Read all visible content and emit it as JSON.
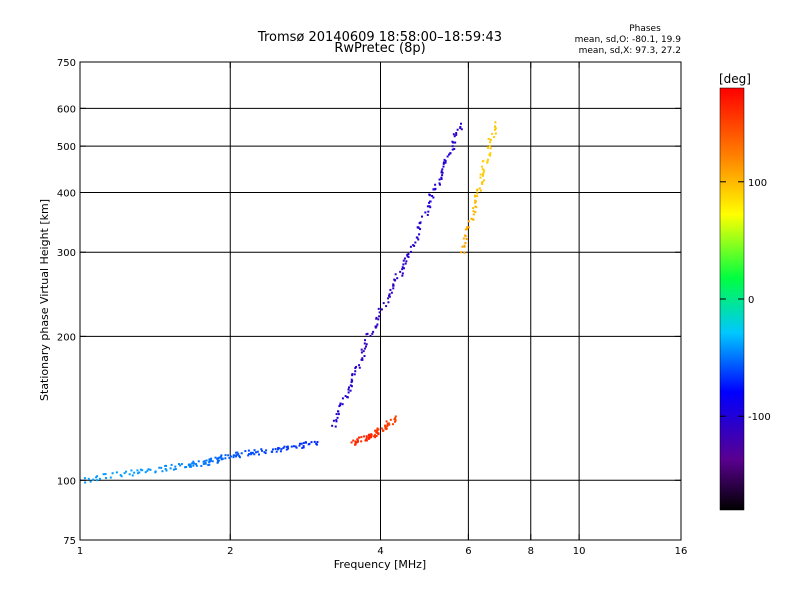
{
  "chart_data": {
    "type": "scatter",
    "title": "Tromsø 20140609 18:58:00–18:59:43",
    "subtitle": "RwPretec (8p)",
    "stats": {
      "title": "Phases",
      "line1": "mean, sd,O: -80.1, 19.9",
      "line2": "mean, sd,X:  97.3, 27.2"
    },
    "xlabel": "Frequency [MHz]",
    "ylabel": "Stationary phase Virtual Height [km]",
    "xscale": "log",
    "yscale": "log",
    "xlim": [
      1,
      16
    ],
    "ylim": [
      75,
      750
    ],
    "xticks": [
      1,
      2,
      4,
      6,
      8,
      10,
      16
    ],
    "xtick_labels": [
      "1",
      "2",
      "4",
      "6",
      "8",
      "10",
      "16"
    ],
    "x_gridlines": [
      2,
      4,
      6,
      8,
      10
    ],
    "yticks": [
      75,
      100,
      200,
      300,
      400,
      500,
      600,
      750
    ],
    "ytick_labels": [
      "75",
      "100",
      "200",
      "300",
      "400",
      "500",
      "600",
      "750"
    ],
    "y_gridlines": [
      100,
      200,
      300,
      400,
      500,
      600
    ],
    "grid": true,
    "colorbar": {
      "label": "[deg]",
      "range": [
        -180,
        180
      ],
      "ticks": [
        100,
        0,
        -100
      ],
      "tick_labels": [
        "100",
        "0",
        "-100"
      ],
      "colormap": "rainbow (black-purple-blue-cyan-green-yellow-red)"
    },
    "series": [
      {
        "description_points": "phase (deg) vs frequency (MHz) and virtual height (km)",
        "traces": [
          {
            "x": [
              1.0,
              1.3,
              1.6,
              1.8,
              1.95,
              2.2,
              2.6,
              3.0
            ],
            "y": [
              100,
              104,
              107,
              109,
              112,
              114,
              117,
              120
            ],
            "phase": [
              -40,
              -40,
              -45,
              -50,
              -55,
              -60,
              -65,
              -70
            ]
          },
          {
            "x": [
              3.2,
              3.5,
              3.8,
              4.2,
              4.6,
              5.0,
              5.4,
              5.8
            ],
            "y": [
              130,
              160,
              200,
              250,
              300,
              380,
              460,
              560
            ],
            "phase": [
              -100,
              -105,
              -110,
              -110,
              -105,
              -100,
              -100,
              -110
            ]
          },
          {
            "x": [
              3.5,
              3.8,
              4.0,
              4.3
            ],
            "y": [
              120,
              123,
              127,
              135
            ],
            "phase": [
              160,
              165,
              155,
              150
            ]
          },
          {
            "x": [
              5.8,
              6.2,
              6.5,
              6.8
            ],
            "y": [
              300,
              380,
              460,
              560
            ],
            "phase": [
              110,
              100,
              90,
              95
            ]
          }
        ]
      }
    ]
  }
}
